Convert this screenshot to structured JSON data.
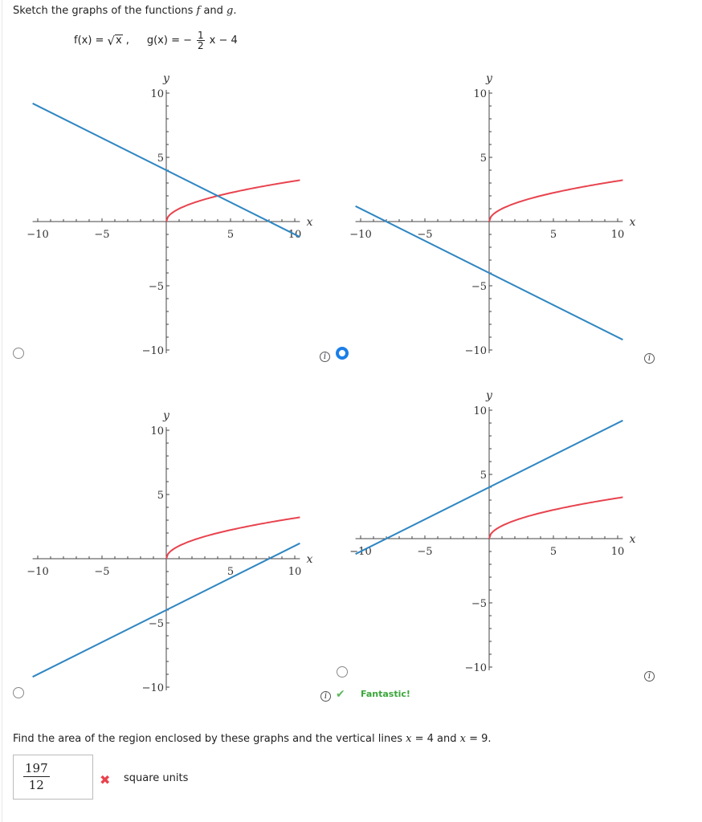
{
  "prompt": {
    "text_before": "Sketch the graphs of the functions ",
    "f": "f",
    "and": " and ",
    "g": "g",
    "period": "."
  },
  "formula": {
    "f_lhs": "f(x) = ",
    "f_radical": "√",
    "f_radicand": "x",
    "f_comma": ",",
    "g_lhs": "g(x) = −",
    "g_num": "1",
    "g_den": "2",
    "g_rest": "x − 4"
  },
  "colors": {
    "f": "#e8434e",
    "g": "#2f86c2",
    "axis": "#444444",
    "selected_radio": "#1a7fe8",
    "correct": "#3aa63a",
    "incorrect": "#e8434e"
  },
  "graphs": [
    {
      "id": "A",
      "selected": false,
      "g_slope": -0.5,
      "g_intercept": 4,
      "axis_labels": {
        "x": "x",
        "y": "y"
      },
      "ticks": [
        "−10",
        "−5",
        "5",
        "10",
        "−10",
        "−5",
        "5",
        "10"
      ]
    },
    {
      "id": "B",
      "selected": true,
      "g_slope": -0.5,
      "g_intercept": -4,
      "axis_labels": {
        "x": "x",
        "y": "y"
      },
      "ticks": [
        "−10",
        "−5",
        "5",
        "10",
        "−10",
        "−5",
        "5",
        "10"
      ]
    },
    {
      "id": "C",
      "selected": false,
      "g_slope": 0.5,
      "g_intercept": -4,
      "axis_labels": {
        "x": "x",
        "y": "y"
      },
      "ticks": [
        "−10",
        "−5",
        "5",
        "10",
        "−10",
        "−5",
        "5",
        "10"
      ]
    },
    {
      "id": "D",
      "selected": false,
      "g_slope": 0.5,
      "g_intercept": 4,
      "axis_labels": {
        "x": "x",
        "y": "y"
      },
      "ticks": [
        "−10",
        "−5",
        "5",
        "10",
        "−10",
        "−5",
        "5",
        "10"
      ]
    }
  ],
  "chart_data": [
    {
      "type": "line",
      "title": "Option A",
      "xlim": [
        -10.4,
        10.4
      ],
      "ylim": [
        -10,
        10
      ],
      "xlabel": "x",
      "ylabel": "y",
      "xticks": [
        -10,
        -5,
        5,
        10
      ],
      "yticks": [
        -10,
        -5,
        5,
        10
      ],
      "series": [
        {
          "name": "f(x)=√x",
          "color": "#e8434e",
          "x": [
            0,
            1,
            4,
            9,
            10.4
          ],
          "y": [
            0,
            1,
            2,
            3,
            3.22
          ]
        },
        {
          "name": "g(x)=-x/2+4",
          "color": "#2f86c2",
          "x": [
            -10.4,
            0,
            8,
            10.4
          ],
          "y": [
            9.2,
            4,
            0,
            -1.2
          ]
        }
      ]
    },
    {
      "type": "line",
      "title": "Option B",
      "xlim": [
        -10.4,
        10.4
      ],
      "ylim": [
        -10,
        10
      ],
      "xlabel": "x",
      "ylabel": "y",
      "xticks": [
        -10,
        -5,
        5,
        10
      ],
      "yticks": [
        -10,
        -5,
        5,
        10
      ],
      "series": [
        {
          "name": "f(x)=√x",
          "color": "#e8434e",
          "x": [
            0,
            1,
            4,
            9,
            10.4
          ],
          "y": [
            0,
            1,
            2,
            3,
            3.22
          ]
        },
        {
          "name": "g(x)=-x/2-4",
          "color": "#2f86c2",
          "x": [
            -10.4,
            -8,
            0,
            10.4
          ],
          "y": [
            1.2,
            0,
            -4,
            -9.2
          ]
        }
      ]
    },
    {
      "type": "line",
      "title": "Option C",
      "xlim": [
        -10.4,
        10.4
      ],
      "ylim": [
        -10,
        10
      ],
      "xlabel": "x",
      "ylabel": "y",
      "xticks": [
        -10,
        -5,
        5,
        10
      ],
      "yticks": [
        -10,
        -5,
        5,
        10
      ],
      "series": [
        {
          "name": "f(x)=√x",
          "color": "#e8434e",
          "x": [
            0,
            1,
            4,
            9,
            10.4
          ],
          "y": [
            0,
            1,
            2,
            3,
            3.22
          ]
        },
        {
          "name": "g(x)=x/2-4",
          "color": "#2f86c2",
          "x": [
            -10.4,
            0,
            8,
            10.4
          ],
          "y": [
            -9.2,
            -4,
            0,
            1.2
          ]
        }
      ]
    },
    {
      "type": "line",
      "title": "Option D",
      "xlim": [
        -10.4,
        10.4
      ],
      "ylim": [
        -10,
        10
      ],
      "xlabel": "x",
      "ylabel": "y",
      "xticks": [
        -10,
        -5,
        5,
        10
      ],
      "yticks": [
        -10,
        -5,
        5,
        10
      ],
      "series": [
        {
          "name": "f(x)=√x",
          "color": "#e8434e",
          "x": [
            0,
            1,
            4,
            9,
            10.4
          ],
          "y": [
            0,
            1,
            2,
            3,
            3.22
          ]
        },
        {
          "name": "g(x)=x/2+4",
          "color": "#2f86c2",
          "x": [
            -10.4,
            -8,
            0,
            10.4
          ],
          "y": [
            -1.2,
            0,
            4,
            9.2
          ]
        }
      ]
    }
  ],
  "feedback": {
    "text": "Fantastic!",
    "info_glyph": "i",
    "check_glyph": "✔"
  },
  "question": {
    "text_before": "Find the area of the region enclosed by these graphs and the vertical lines ",
    "x1_var": "x",
    "x1_eq": " = 4 and ",
    "x2_var": "x",
    "x2_eq": " = 9."
  },
  "answer": {
    "numerator": "197",
    "denominator": "12",
    "status_glyph": "✖",
    "units": "square units"
  }
}
